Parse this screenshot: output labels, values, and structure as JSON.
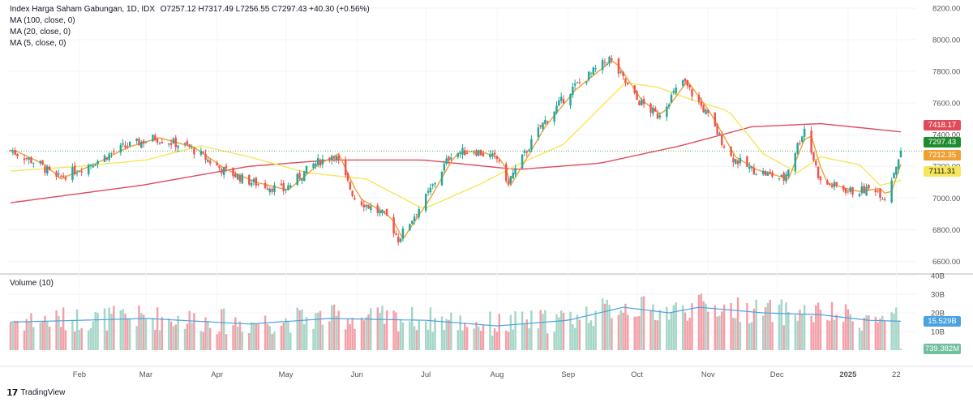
{
  "header": {
    "symbol_line": "Index Harga Saham Gabungan, 1D, IDX",
    "ohlc": "O7257.12  H7317.49  L7256.55  C7297.43  +40.30 (+0.56%)",
    "ma1": "MA (100, close, 0)",
    "ma2": "MA (20, close, 0)",
    "ma3": "MA (5, close, 0)"
  },
  "volume_panel": {
    "label": "Volume (10)"
  },
  "badges": {
    "ma100": "7418.17",
    "close": "7297.43",
    "ma5": "7212.35",
    "ma20": "7111.31",
    "volume_ma": "15.529B",
    "volume_last": "739.382M"
  },
  "footer": {
    "brand": "TradingView"
  },
  "colors": {
    "up": "#26a69a",
    "down": "#ef5350",
    "up_vol": "#a5d6c8",
    "down_vol": "#f3a0a8",
    "ma100": "#e04b5a",
    "ma20": "#f5e65c",
    "ma5": "#f0a030",
    "vol_ma": "#4aa3df",
    "close_badge": "#1e8c2e"
  },
  "chart_data": {
    "type": "candlestick",
    "y_axis_ticks": [
      "8200.00",
      "8000.00",
      "7800.00",
      "7600.00",
      "7400.00",
      "7200.00",
      "7000.00",
      "6800.00",
      "6600.00"
    ],
    "ylim": [
      6520,
      8200
    ],
    "volume_axis_ticks": [
      "40B",
      "30B",
      "20B",
      "10B"
    ],
    "volume_ylim": [
      0,
      40
    ],
    "x_ticks": [
      "Feb",
      "Mar",
      "Apr",
      "May",
      "Jun",
      "Jul",
      "Aug",
      "Sep",
      "Oct",
      "Nov",
      "Dec",
      "2025",
      "22"
    ],
    "close_anchors": [
      [
        "2024-01-02",
        7300
      ],
      [
        "2024-01-15",
        7210
      ],
      [
        "2024-01-22",
        7120
      ],
      [
        "2024-02-08",
        7230
      ],
      [
        "2024-02-20",
        7320
      ],
      [
        "2024-03-05",
        7380
      ],
      [
        "2024-03-20",
        7320
      ],
      [
        "2024-04-03",
        7180
      ],
      [
        "2024-04-16",
        7100
      ],
      [
        "2024-04-30",
        7050
      ],
      [
        "2024-05-13",
        7210
      ],
      [
        "2024-05-22",
        7280
      ],
      [
        "2024-05-31",
        7000
      ],
      [
        "2024-06-14",
        6880
      ],
      [
        "2024-06-19",
        6740
      ],
      [
        "2024-07-01",
        7000
      ],
      [
        "2024-07-12",
        7280
      ],
      [
        "2024-07-22",
        7300
      ],
      [
        "2024-08-02",
        7240
      ],
      [
        "2024-08-05",
        7080
      ],
      [
        "2024-08-20",
        7450
      ],
      [
        "2024-09-02",
        7680
      ],
      [
        "2024-09-19",
        7880
      ],
      [
        "2024-10-01",
        7620
      ],
      [
        "2024-10-10",
        7520
      ],
      [
        "2024-10-21",
        7740
      ],
      [
        "2024-10-31",
        7540
      ],
      [
        "2024-11-11",
        7260
      ],
      [
        "2024-11-20",
        7180
      ],
      [
        "2024-12-04",
        7120
      ],
      [
        "2024-12-13",
        7440
      ],
      [
        "2024-12-20",
        7100
      ],
      [
        "2025-01-03",
        7040
      ],
      [
        "2025-01-13",
        7060
      ],
      [
        "2025-01-17",
        7000
      ],
      [
        "2025-01-24",
        7297
      ]
    ],
    "ma100_anchors": [
      [
        "2024-01-02",
        6970
      ],
      [
        "2024-02-28",
        7080
      ],
      [
        "2024-04-15",
        7200
      ],
      [
        "2024-05-20",
        7240
      ],
      [
        "2024-06-30",
        7240
      ],
      [
        "2024-08-10",
        7180
      ],
      [
        "2024-09-15",
        7220
      ],
      [
        "2024-10-20",
        7330
      ],
      [
        "2024-11-20",
        7450
      ],
      [
        "2024-12-20",
        7470
      ],
      [
        "2025-01-24",
        7418
      ]
    ],
    "ma20_anchors": [
      [
        "2024-01-02",
        7170
      ],
      [
        "2024-02-01",
        7200
      ],
      [
        "2024-03-01",
        7240
      ],
      [
        "2024-03-25",
        7330
      ],
      [
        "2024-04-15",
        7260
      ],
      [
        "2024-05-10",
        7160
      ],
      [
        "2024-06-05",
        7120
      ],
      [
        "2024-06-30",
        6930
      ],
      [
        "2024-07-25",
        7090
      ],
      [
        "2024-08-10",
        7210
      ],
      [
        "2024-08-30",
        7340
      ],
      [
        "2024-09-26",
        7730
      ],
      [
        "2024-10-10",
        7700
      ],
      [
        "2024-10-25",
        7620
      ],
      [
        "2024-11-10",
        7550
      ],
      [
        "2024-11-25",
        7280
      ],
      [
        "2024-12-10",
        7160
      ],
      [
        "2024-12-20",
        7260
      ],
      [
        "2025-01-06",
        7210
      ],
      [
        "2025-01-15",
        7080
      ],
      [
        "2025-01-24",
        7111
      ]
    ],
    "volume_ma_anchors": [
      [
        "2024-01-02",
        15
      ],
      [
        "2024-02-01",
        16
      ],
      [
        "2024-03-01",
        17
      ],
      [
        "2024-04-15",
        14
      ],
      [
        "2024-05-20",
        17
      ],
      [
        "2024-07-01",
        16
      ],
      [
        "2024-08-01",
        13
      ],
      [
        "2024-09-01",
        16
      ],
      [
        "2024-09-25",
        23
      ],
      [
        "2024-10-15",
        20
      ],
      [
        "2024-10-28",
        23
      ],
      [
        "2024-11-25",
        20
      ],
      [
        "2024-12-20",
        19
      ],
      [
        "2025-01-10",
        16
      ],
      [
        "2025-01-24",
        15.5
      ]
    ]
  }
}
